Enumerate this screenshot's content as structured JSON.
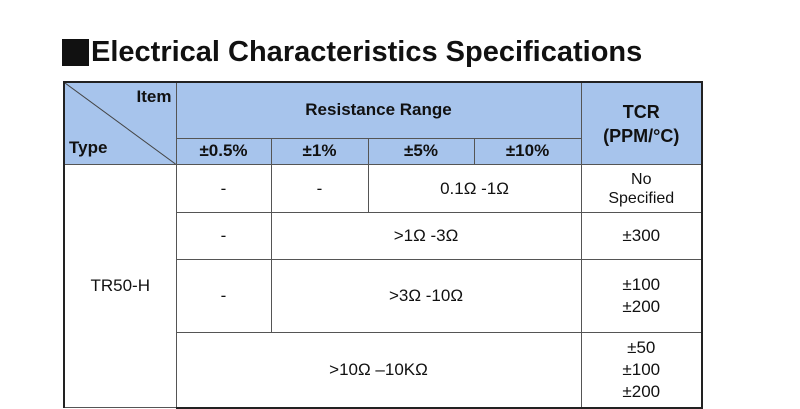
{
  "title": "Electrical Characteristics Specifications",
  "table": {
    "corner_item": "Item",
    "corner_type": "Type",
    "resistance_range": "Resistance Range",
    "tcr_line1": "TCR",
    "tcr_line2": "(PPM/°C)",
    "tolerances": [
      "±0.5%",
      "±1%",
      "±5%",
      "±10%"
    ],
    "type_value": "TR50-H",
    "rows": [
      {
        "c1": "-",
        "c2": "-",
        "range": "0.1Ω -1Ω",
        "tcr": [
          "No",
          "Specified"
        ]
      },
      {
        "c1": "-",
        "range": ">1Ω -3Ω",
        "tcr": [
          "±300"
        ]
      },
      {
        "c1": "-",
        "range": ">3Ω -10Ω",
        "tcr": [
          "±100",
          "±200"
        ]
      },
      {
        "range": ">10Ω –10KΩ",
        "tcr": [
          "±50",
          "±100",
          "±200"
        ]
      }
    ]
  }
}
